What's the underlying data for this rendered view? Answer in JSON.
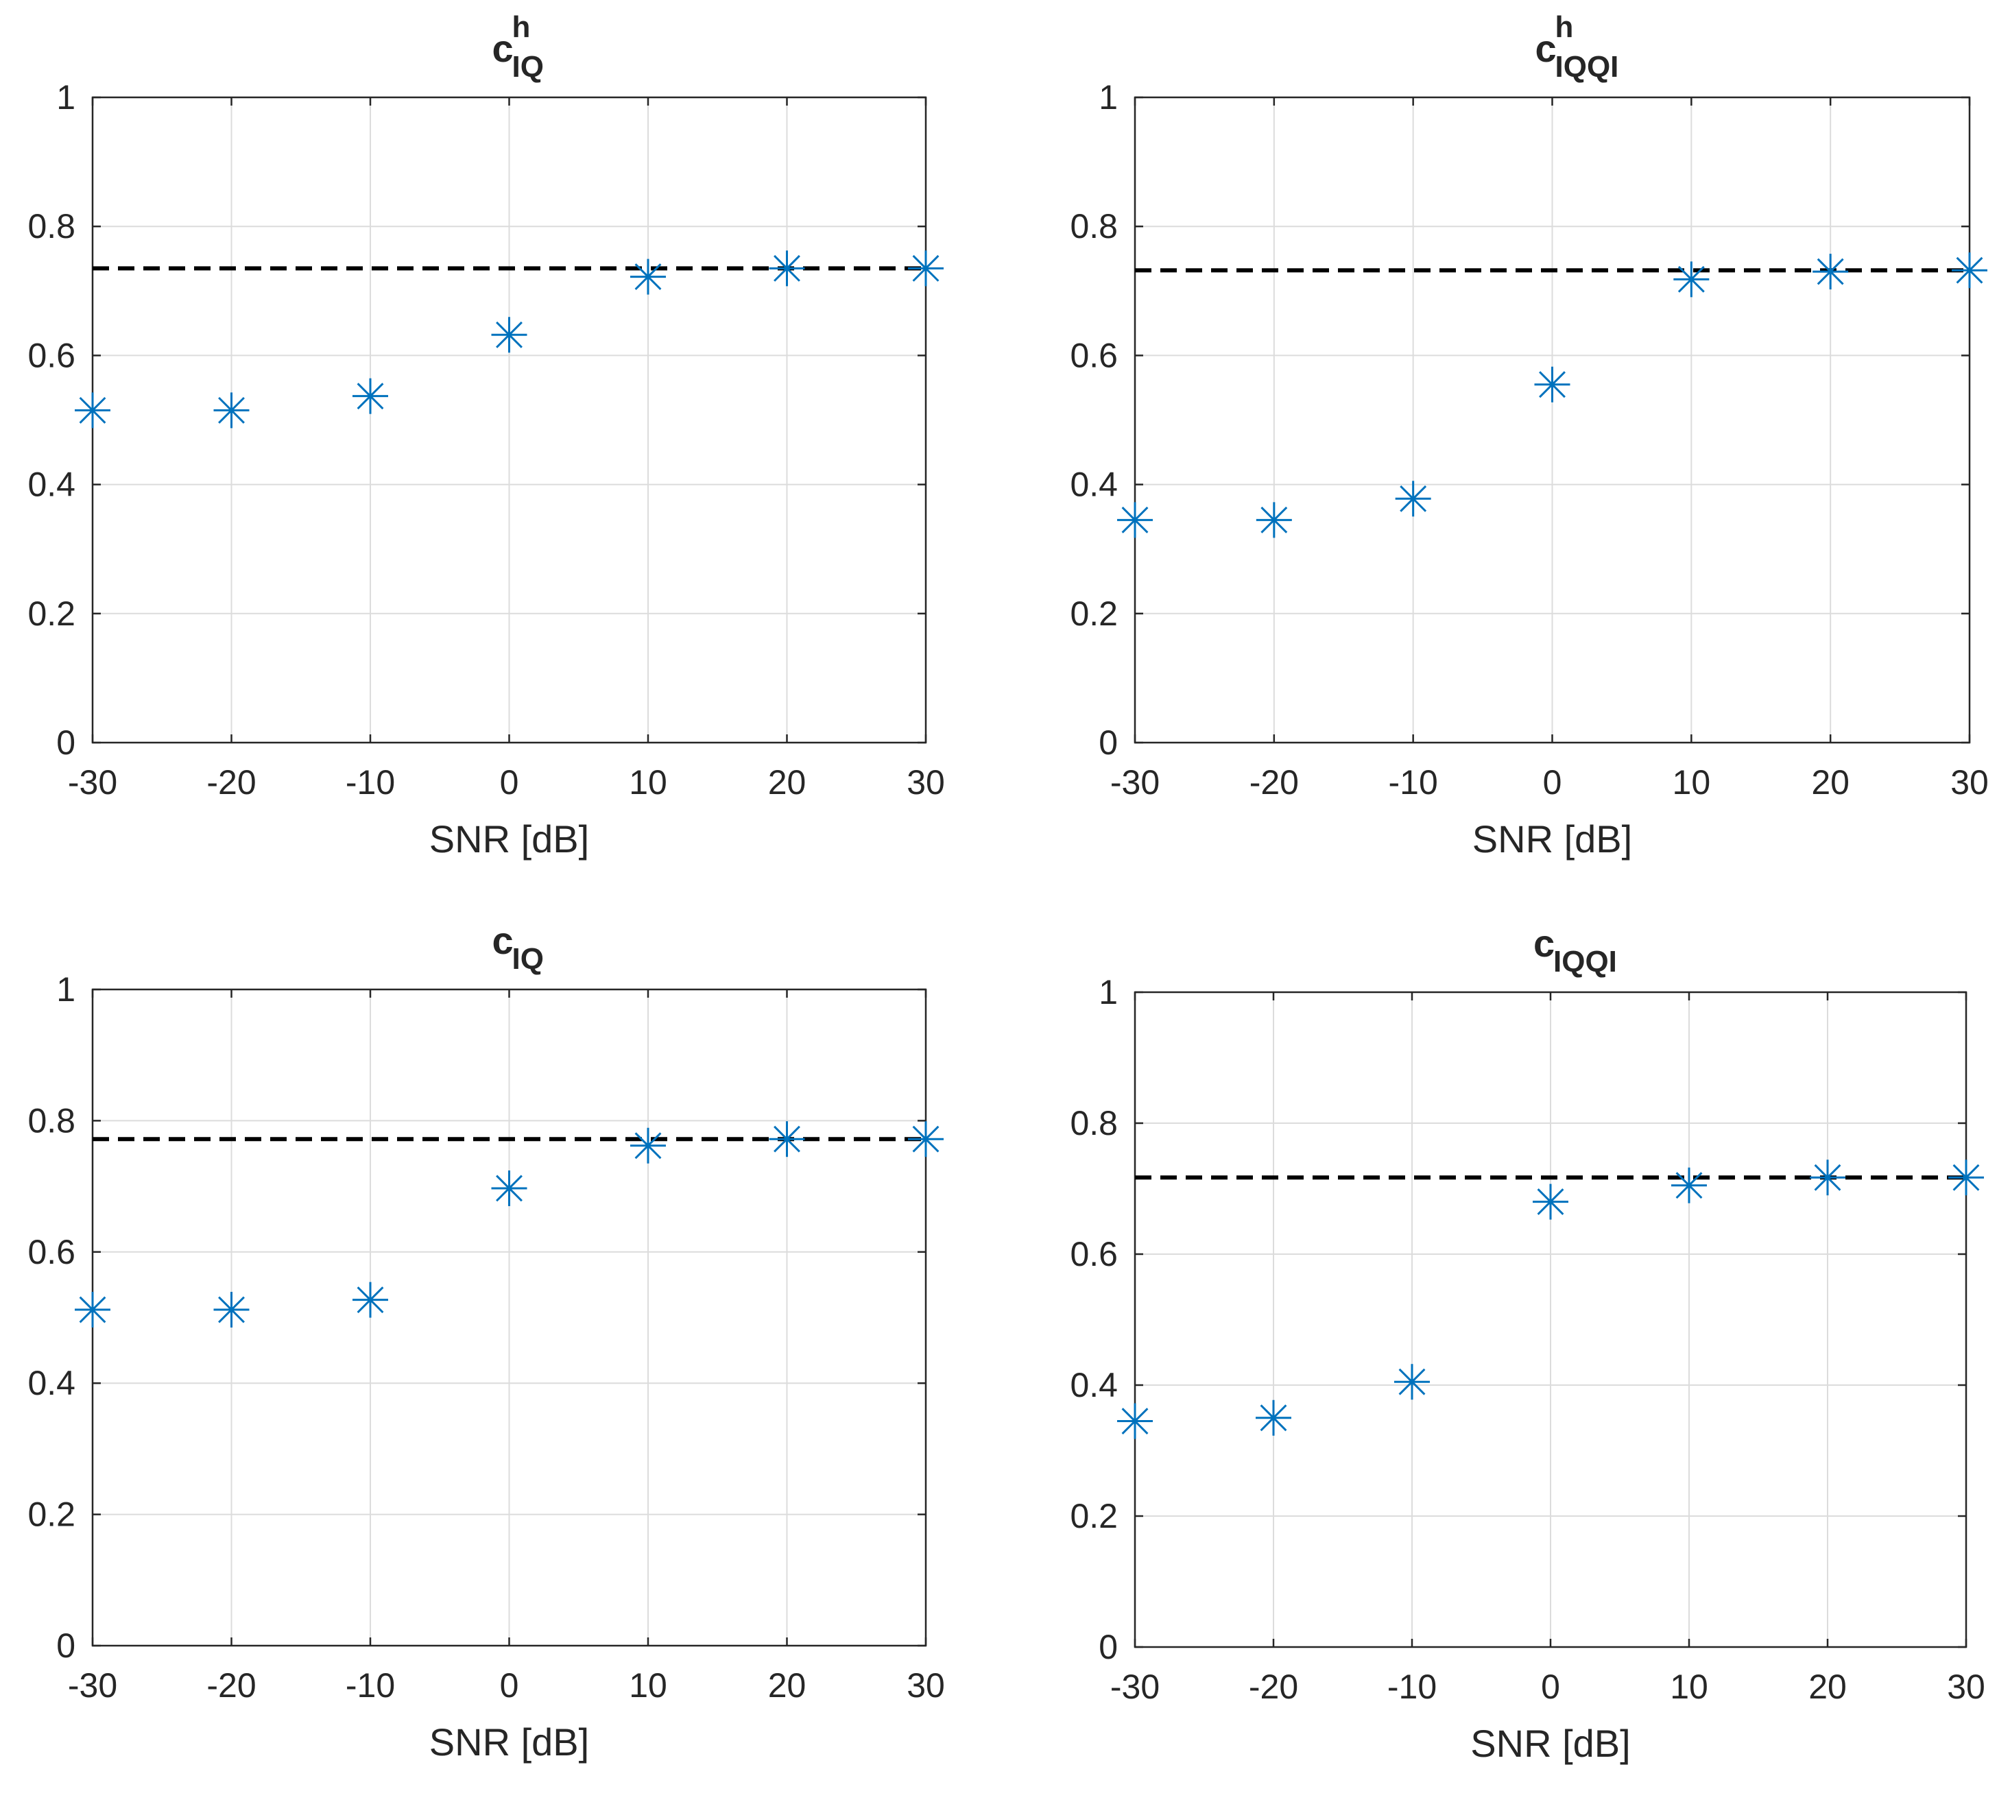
{
  "chart_data": [
    {
      "type": "scatter",
      "title": "c",
      "title_superscript": "h",
      "title_subscript": "IQ",
      "xlabel": "SNR [dB]",
      "ylabel": "",
      "xlim": [
        -30,
        30
      ],
      "ylim": [
        0,
        1
      ],
      "x_ticks": [
        "-30",
        "-20",
        "-10",
        "0",
        "10",
        "20",
        "30"
      ],
      "y_ticks": [
        "0",
        "0.2",
        "0.4",
        "0.6",
        "0.8",
        "1"
      ],
      "grid": true,
      "series": [
        {
          "name": "points",
          "marker": "asterisk",
          "color": "#0072BD",
          "x": [
            -30,
            -20,
            -10,
            0,
            10,
            20,
            30
          ],
          "y": [
            0.515,
            0.515,
            0.537,
            0.632,
            0.722,
            0.735,
            0.735
          ]
        }
      ],
      "reference_line": {
        "style": "dashed",
        "color": "#000000",
        "y": 0.735
      }
    },
    {
      "type": "scatter",
      "title": "c",
      "title_superscript": "h",
      "title_subscript": "IQQI",
      "xlabel": "SNR [dB]",
      "ylabel": "",
      "xlim": [
        -30,
        30
      ],
      "ylim": [
        0,
        1
      ],
      "x_ticks": [
        "-30",
        "-20",
        "-10",
        "0",
        "10",
        "20",
        "30"
      ],
      "y_ticks": [
        "0",
        "0.2",
        "0.4",
        "0.6",
        "0.8",
        "1"
      ],
      "grid": true,
      "series": [
        {
          "name": "points",
          "marker": "asterisk",
          "color": "#0072BD",
          "x": [
            -30,
            -20,
            -10,
            0,
            10,
            20,
            30
          ],
          "y": [
            0.345,
            0.345,
            0.378,
            0.555,
            0.718,
            0.73,
            0.732
          ]
        }
      ],
      "reference_line": {
        "style": "dashed",
        "color": "#000000",
        "y": 0.732
      }
    },
    {
      "type": "scatter",
      "title": "c",
      "title_superscript": "",
      "title_subscript": "IQ",
      "xlabel": "SNR [dB]",
      "ylabel": "",
      "xlim": [
        -30,
        30
      ],
      "ylim": [
        0,
        1
      ],
      "x_ticks": [
        "-30",
        "-20",
        "-10",
        "0",
        "10",
        "20",
        "30"
      ],
      "y_ticks": [
        "0",
        "0.2",
        "0.4",
        "0.6",
        "0.8",
        "1"
      ],
      "grid": true,
      "series": [
        {
          "name": "points",
          "marker": "asterisk",
          "color": "#0072BD",
          "x": [
            -30,
            -20,
            -10,
            0,
            10,
            20,
            30
          ],
          "y": [
            0.512,
            0.512,
            0.527,
            0.697,
            0.762,
            0.772,
            0.772
          ]
        }
      ],
      "reference_line": {
        "style": "dashed",
        "color": "#000000",
        "y": 0.772
      }
    },
    {
      "type": "scatter",
      "title": "c",
      "title_superscript": "",
      "title_subscript": "IQQI",
      "xlabel": "SNR [dB]",
      "ylabel": "",
      "xlim": [
        -30,
        30
      ],
      "ylim": [
        0,
        1
      ],
      "x_ticks": [
        "-30",
        "-20",
        "-10",
        "0",
        "10",
        "20",
        "30"
      ],
      "y_ticks": [
        "0",
        "0.2",
        "0.4",
        "0.6",
        "0.8",
        "1"
      ],
      "grid": true,
      "series": [
        {
          "name": "points",
          "marker": "asterisk",
          "color": "#0072BD",
          "x": [
            -30,
            -20,
            -10,
            0,
            10,
            20,
            30
          ],
          "y": [
            0.345,
            0.35,
            0.405,
            0.68,
            0.705,
            0.717,
            0.717
          ]
        }
      ],
      "reference_line": {
        "style": "dashed",
        "color": "#000000",
        "y": 0.717
      }
    }
  ]
}
